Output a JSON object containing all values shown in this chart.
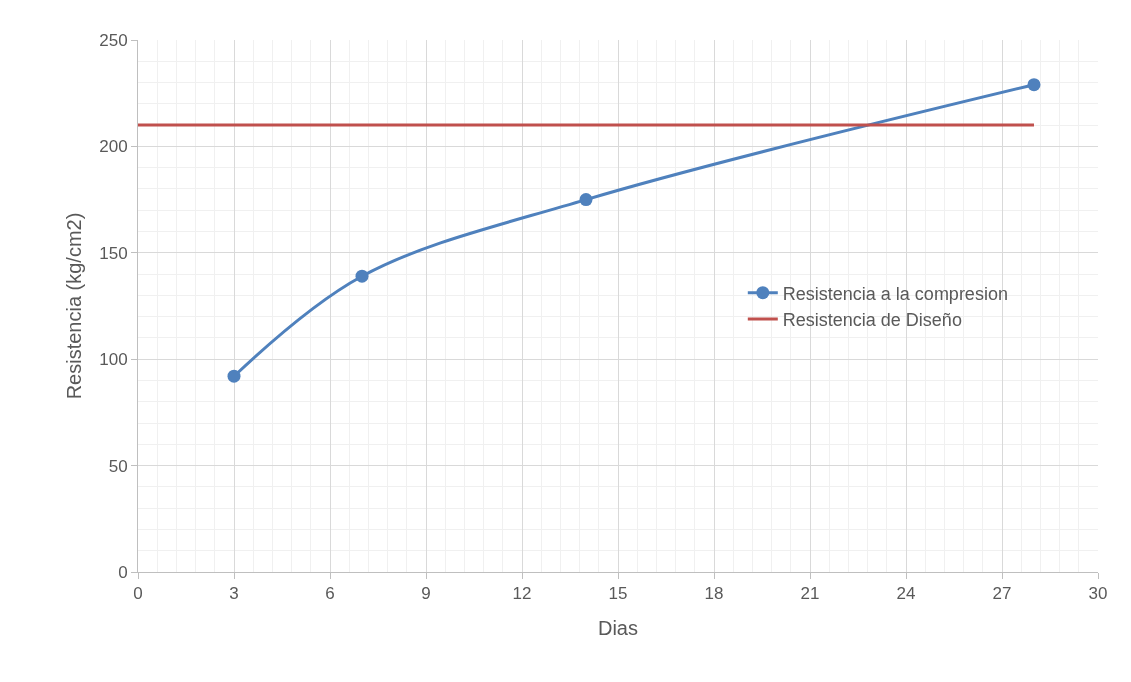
{
  "chart_data": {
    "type": "line",
    "xlabel": "Dias",
    "ylabel": "Resistencia (kg/cm2)",
    "x": [
      3,
      7,
      14,
      28
    ],
    "series": [
      {
        "name": "Resistencia a la compresion",
        "color": "#4f81bd",
        "values": [
          92,
          139,
          175,
          229
        ],
        "marker": "circle"
      },
      {
        "name": "Resistencia de Diseño",
        "color": "#c0504d",
        "x": [
          0,
          28
        ],
        "values": [
          210,
          210
        ],
        "marker": "none"
      }
    ],
    "xlim": [
      0,
      30
    ],
    "xticks": [
      0,
      3,
      6,
      9,
      12,
      15,
      18,
      21,
      24,
      27,
      30
    ],
    "ylim": [
      0,
      250
    ],
    "yticks": [
      0,
      50,
      100,
      150,
      200,
      250
    ],
    "grid": true,
    "legend": "right",
    "line_style": "solid"
  }
}
